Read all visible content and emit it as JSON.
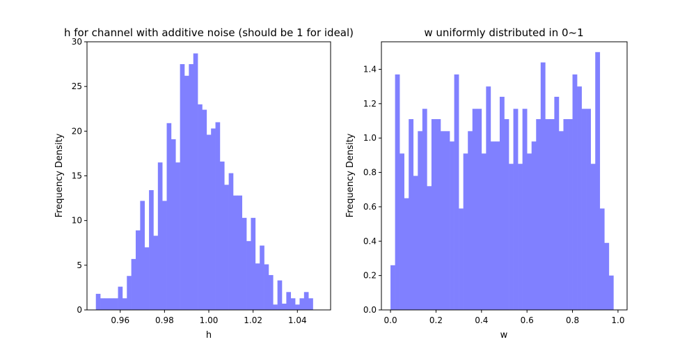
{
  "figure": {
    "background": "#ffffff",
    "bar_color": "#8080ff"
  },
  "chart_data": [
    {
      "type": "bar",
      "title": "h for channel with additive noise (should be 1 for ideal)",
      "xlabel": "h",
      "ylabel": "Frequency Density",
      "xlim": [
        0.945,
        1.055
      ],
      "ylim": [
        0,
        30
      ],
      "xticks": [
        0.96,
        0.98,
        1.0,
        1.02,
        1.04
      ],
      "xtick_labels": [
        "0.96",
        "0.98",
        "1.00",
        "1.02",
        "1.04"
      ],
      "yticks": [
        0,
        5,
        10,
        15,
        20,
        25,
        30
      ],
      "ytick_labels": [
        "0",
        "5",
        "10",
        "15",
        "20",
        "25",
        "30"
      ],
      "bin_start": 0.949,
      "bin_width": 0.002,
      "values": [
        1.8,
        1.3,
        1.3,
        1.3,
        1.3,
        2.6,
        1.3,
        3.8,
        5.7,
        8.9,
        12.2,
        7.0,
        13.4,
        8.3,
        16.5,
        12.2,
        20.9,
        19.1,
        16.5,
        27.5,
        26.2,
        27.5,
        28.7,
        23.0,
        22.4,
        19.6,
        20.3,
        21.0,
        16.6,
        14.0,
        15.3,
        12.8,
        12.8,
        10.3,
        7.7,
        10.3,
        5.2,
        7.2,
        5.1,
        3.9,
        0.6,
        3.3,
        0.7,
        2.0,
        1.3,
        0.6,
        1.3,
        2.0,
        1.3
      ],
      "grid": false
    },
    {
      "type": "bar",
      "title": "w uniformly distributed in 0~1",
      "xlabel": "w",
      "ylabel": "Frequency Density",
      "xlim": [
        -0.04,
        1.04
      ],
      "ylim": [
        0,
        1.56
      ],
      "xticks": [
        0.0,
        0.2,
        0.4,
        0.6,
        0.8,
        1.0
      ],
      "xtick_labels": [
        "0.0",
        "0.2",
        "0.4",
        "0.6",
        "0.8",
        "1.0"
      ],
      "yticks": [
        0.0,
        0.2,
        0.4,
        0.6,
        0.8,
        1.0,
        1.2,
        1.4
      ],
      "ytick_labels": [
        "0.0",
        "0.2",
        "0.4",
        "0.6",
        "0.8",
        "1.0",
        "1.2",
        "1.4"
      ],
      "bin_start": 0.0,
      "bin_width": 0.02,
      "values": [
        0.26,
        1.37,
        0.91,
        0.65,
        1.11,
        0.78,
        1.04,
        1.17,
        0.72,
        1.11,
        1.11,
        1.04,
        1.04,
        0.98,
        1.37,
        0.59,
        0.91,
        1.04,
        1.17,
        1.17,
        0.91,
        1.3,
        0.98,
        0.98,
        1.24,
        1.11,
        0.85,
        1.17,
        0.85,
        1.17,
        0.91,
        0.98,
        1.11,
        1.44,
        1.11,
        1.11,
        1.24,
        1.04,
        1.11,
        1.11,
        1.37,
        1.3,
        1.17,
        1.17,
        0.85,
        1.5,
        0.59,
        0.39,
        0.2
      ],
      "grid": false
    }
  ]
}
